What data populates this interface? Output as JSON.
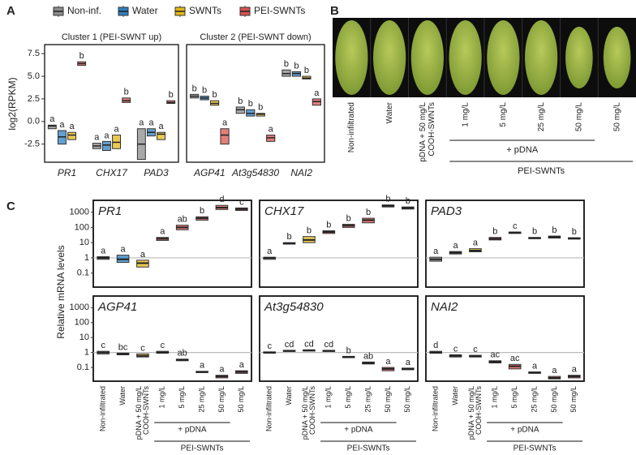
{
  "chart_data": [
    {
      "type": "box",
      "panel": "A",
      "ylabel": "log2(RPKM)",
      "ylim": [
        -4.5,
        8.5
      ],
      "yticks": [
        {
          "value": -2.5,
          "label": "-2.5"
        },
        {
          "value": 0,
          "label": "0.0"
        },
        {
          "value": 2.5,
          "label": "2.5"
        },
        {
          "value": 5,
          "label": "5.0"
        },
        {
          "value": 7.5,
          "label": "7.5"
        }
      ],
      "series": [
        {
          "name": "Non-inf.",
          "color": "#8c8c8c"
        },
        {
          "name": "Water",
          "color": "#2f7fc1"
        },
        {
          "name": "SWNTs",
          "color": "#e6b818"
        },
        {
          "name": "PEI-SWNTs",
          "color": "#d9534f"
        }
      ],
      "facets": [
        {
          "title": "Cluster 1 (PEI-SWNT up)",
          "categories": [
            "PR1",
            "CHX17",
            "PAD3"
          ],
          "series": [
            {
              "values": [
                [
                  -0.8,
                  -0.5,
                  -0.4
                ],
                [
                  -3.0,
                  -2.7,
                  -2.4
                ],
                [
                  -4.2,
                  -2.5,
                  -0.8
                ]
              ],
              "labels": [
                "a",
                "a",
                "a"
              ]
            },
            {
              "values": [
                [
                  -2.5,
                  -1.7,
                  -1.0
                ],
                [
                  -3.2,
                  -2.6,
                  -2.2
                ],
                [
                  -1.6,
                  -1.2,
                  -0.8
                ]
              ],
              "labels": [
                "a",
                "a",
                "a"
              ]
            },
            {
              "values": [
                [
                  -2.0,
                  -1.5,
                  -1.2
                ],
                [
                  -3.0,
                  -2.3,
                  -1.5
                ],
                [
                  -2.0,
                  -1.4,
                  -1.2
                ]
              ],
              "labels": [
                "a",
                "a",
                "a"
              ]
            },
            {
              "values": [
                [
                  6.2,
                  6.4,
                  6.6
                ],
                [
                  2.1,
                  2.3,
                  2.6
                ],
                [
                  2.0,
                  2.1,
                  2.3
                ]
              ],
              "labels": [
                "b",
                "b",
                "b"
              ]
            }
          ]
        },
        {
          "title": "Cluster 2 (PEI-SWNT down)",
          "categories": [
            "AGP41",
            "At3g54830",
            "NAI2"
          ],
          "series": [
            {
              "values": [
                [
                  2.6,
                  2.8,
                  3.0
                ],
                [
                  0.9,
                  1.3,
                  1.6
                ],
                [
                  5.0,
                  5.3,
                  5.7
                ]
              ],
              "labels": [
                "b",
                "b",
                "b"
              ]
            },
            {
              "values": [
                [
                  2.4,
                  2.6,
                  2.8
                ],
                [
                  0.6,
                  0.9,
                  1.3
                ],
                [
                  5.0,
                  5.3,
                  5.5
                ]
              ],
              "labels": [
                "b",
                "b",
                "b"
              ]
            },
            {
              "values": [
                [
                  1.8,
                  2.0,
                  2.3
                ],
                [
                  0.6,
                  0.8,
                  0.9
                ],
                [
                  4.7,
                  4.8,
                  5.0
                ]
              ],
              "labels": [
                "b",
                "b",
                "b"
              ]
            },
            {
              "values": [
                [
                  -2.5,
                  -1.5,
                  -0.8
                ],
                [
                  -2.2,
                  -1.8,
                  -1.5
                ],
                [
                  1.8,
                  2.2,
                  2.5
                ]
              ],
              "labels": [
                "a",
                "a",
                "a"
              ]
            }
          ]
        }
      ]
    },
    {
      "type": "box",
      "panel": "C",
      "ylabel": "Relative mRNA levels",
      "log_scale": true,
      "ylim": [
        0.012,
        6000
      ],
      "yticks": [
        0.1,
        1,
        10,
        100,
        1000
      ],
      "reference_line": 1,
      "categories": [
        [
          "Non-infiltrated"
        ],
        [
          "Water"
        ],
        [
          "pDNA + 50 mg/L",
          "COOH-SWNTs"
        ],
        [
          "1 mg/L"
        ],
        [
          "5 mg/L"
        ],
        [
          "25 mg/L"
        ],
        [
          "50 mg/L"
        ],
        [
          "50 mg/L"
        ]
      ],
      "colors": [
        "#8c8c8c",
        "#2f7fc1",
        "#e6b818",
        "#d9534f",
        "#d9534f",
        "#d9534f",
        "#d9534f",
        "#d9534f"
      ],
      "brackets": [
        "+ pDNA",
        "PEI-SWNTs"
      ],
      "facets": [
        {
          "title": "PR1",
          "values": [
            [
              0.8,
              1,
              1.2
            ],
            [
              0.5,
              0.8,
              1.5
            ],
            [
              0.25,
              0.45,
              0.7
            ],
            [
              14,
              18,
              22
            ],
            [
              70,
              100,
              140
            ],
            [
              300,
              400,
              500
            ],
            [
              1500,
              2000,
              2800
            ],
            [
              1300,
              1600,
              1900
            ]
          ],
          "labels": [
            "a",
            "a",
            "a",
            "a",
            "ab",
            "b",
            "d",
            "c"
          ]
        },
        {
          "title": "CHX17",
          "values": [
            [
              0.8,
              1,
              1.1
            ],
            [
              8,
              9,
              10
            ],
            [
              10,
              15,
              25
            ],
            [
              40,
              50,
              60
            ],
            [
              100,
              130,
              160
            ],
            [
              200,
              300,
              400
            ],
            [
              2200,
              2600,
              3000
            ],
            [
              1600,
              1900,
              2200
            ]
          ],
          "labels": [
            "a",
            "b",
            "b",
            "b",
            "b",
            "b",
            "b",
            "b"
          ]
        },
        {
          "title": "PAD3",
          "values": [
            [
              0.6,
              0.8,
              1.1
            ],
            [
              1.8,
              2.2,
              2.6
            ],
            [
              2.5,
              3,
              4
            ],
            [
              15,
              18,
              22
            ],
            [
              40,
              45,
              50
            ],
            [
              18,
              20,
              22
            ],
            [
              20,
              23,
              27
            ],
            [
              17,
              19,
              21
            ]
          ],
          "labels": [
            "a",
            "a",
            "a",
            "b",
            "c",
            "b",
            "b",
            "b"
          ]
        },
        {
          "title": "AGP41",
          "values": [
            [
              0.8,
              1,
              1.2
            ],
            [
              0.7,
              0.8,
              0.9
            ],
            [
              0.5,
              0.6,
              0.8
            ],
            [
              0.9,
              1,
              1.2
            ],
            [
              0.28,
              0.32,
              0.36
            ],
            [
              0.045,
              0.05,
              0.055
            ],
            [
              0.02,
              0.025,
              0.03
            ],
            [
              0.04,
              0.05,
              0.06
            ]
          ],
          "labels": [
            "c",
            "bc",
            "c",
            "c",
            "ab",
            "a",
            "a",
            "a"
          ]
        },
        {
          "title": "At3g54830",
          "values": [
            [
              0.9,
              1,
              1.1
            ],
            [
              1.2,
              1.3,
              1.4
            ],
            [
              1.3,
              1.4,
              1.5
            ],
            [
              1.2,
              1.3,
              1.4
            ],
            [
              0.45,
              0.5,
              0.55
            ],
            [
              0.17,
              0.2,
              0.23
            ],
            [
              0.06,
              0.08,
              0.1
            ],
            [
              0.07,
              0.08,
              0.09
            ]
          ],
          "labels": [
            "c",
            "cd",
            "cd",
            "cd",
            "b",
            "ab",
            "a",
            "a"
          ]
        },
        {
          "title": "NAI2",
          "values": [
            [
              0.9,
              1,
              1.2
            ],
            [
              0.5,
              0.6,
              0.7
            ],
            [
              0.5,
              0.55,
              0.65
            ],
            [
              0.2,
              0.24,
              0.28
            ],
            [
              0.08,
              0.12,
              0.16
            ],
            [
              0.04,
              0.045,
              0.05
            ],
            [
              0.017,
              0.02,
              0.025
            ],
            [
              0.02,
              0.025,
              0.03
            ]
          ],
          "labels": [
            "d",
            "c",
            "c",
            "ac",
            "ac",
            "a",
            "a",
            "a"
          ]
        }
      ]
    }
  ],
  "photos": {
    "panel": "B",
    "labels": [
      [
        "Non-infiltrated"
      ],
      [
        "Water"
      ],
      [
        "pDNA + 50 mg/L",
        "COOH-SWNTs"
      ],
      [
        "1 mg/L"
      ],
      [
        "5 mg/L"
      ],
      [
        "25 mg/L"
      ],
      [
        "50 mg/L"
      ],
      [
        "50 mg/L"
      ]
    ],
    "brackets": [
      "+ pDNA",
      "PEI-SWNTs"
    ]
  }
}
